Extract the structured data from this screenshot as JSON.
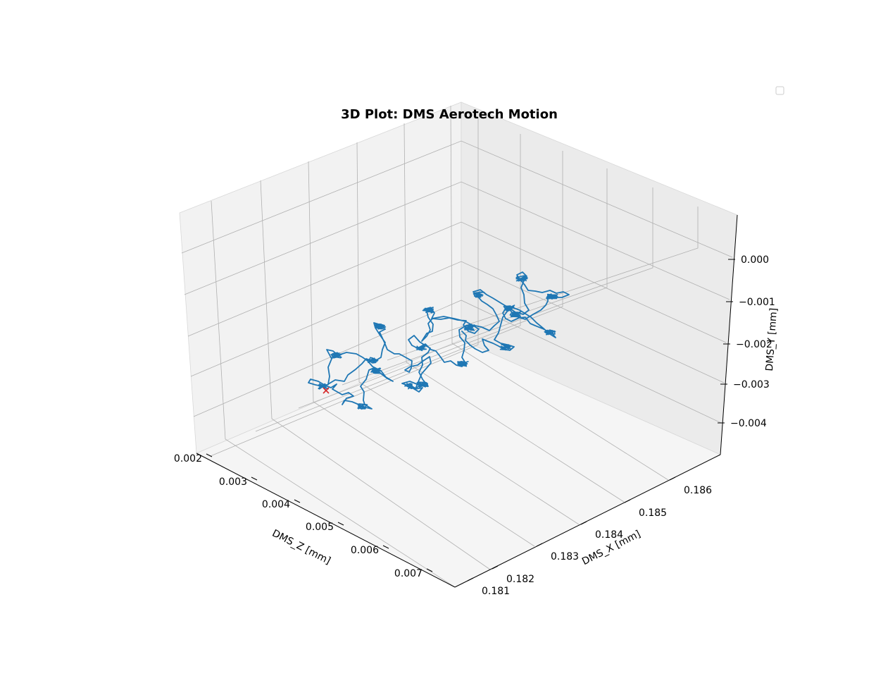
{
  "figure": {
    "title": "3D Plot: DMS Aerotech Motion"
  },
  "chart_data": {
    "type": "line-3d",
    "title": "3D Plot: DMS Aerotech Motion",
    "axes": {
      "x": {
        "label": "DMS_X [mm]",
        "ticks": [
          "0.181",
          "0.182",
          "0.183",
          "0.184",
          "0.185",
          "0.186"
        ],
        "range": [
          0.1806,
          0.1862
        ]
      },
      "y": {
        "label": "DMS_Y [mm]",
        "ticks": [
          "0.000",
          "−0.001",
          "−0.002",
          "−0.003",
          "−0.004"
        ],
        "range": [
          -0.0047,
          0.001
        ]
      },
      "z": {
        "label": "DMS_Z [mm]",
        "ticks": [
          "0.002",
          "0.003",
          "0.004",
          "0.005",
          "0.006",
          "0.007"
        ],
        "range": [
          0.0018,
          0.0072
        ]
      }
    },
    "grid": true,
    "legend": {
      "placement": "top-right",
      "entries": []
    },
    "series": [
      {
        "type": "line",
        "color": "#1f77b4",
        "approximate_dwell_points": [
          {
            "x": 0.1826,
            "z": 0.003,
            "y": -0.0021
          },
          {
            "x": 0.1831,
            "z": 0.0035,
            "y": -0.0028
          },
          {
            "x": 0.1821,
            "z": 0.004,
            "y": -0.0019
          },
          {
            "x": 0.1816,
            "z": 0.0046,
            "y": -0.0016
          },
          {
            "x": 0.1824,
            "z": 0.005,
            "y": -0.0013
          },
          {
            "x": 0.1833,
            "z": 0.0046,
            "y": -0.0022
          },
          {
            "x": 0.1837,
            "z": 0.0058,
            "y": -0.0014
          },
          {
            "x": 0.1831,
            "z": 0.0058,
            "y": -0.0012
          },
          {
            "x": 0.1834,
            "z": 0.0062,
            "y": -0.0003
          },
          {
            "x": 0.1844,
            "z": 0.006,
            "y": -0.0007
          },
          {
            "x": 0.1848,
            "z": 0.0061,
            "y": -0.0018
          },
          {
            "x": 0.1842,
            "z": 0.0064,
            "y": -0.0019
          }
        ]
      },
      {
        "type": "marker",
        "marker": "x",
        "color": "#d62728",
        "point": {
          "x": 0.1825,
          "z": 0.0029,
          "y": -0.003
        }
      }
    ]
  }
}
